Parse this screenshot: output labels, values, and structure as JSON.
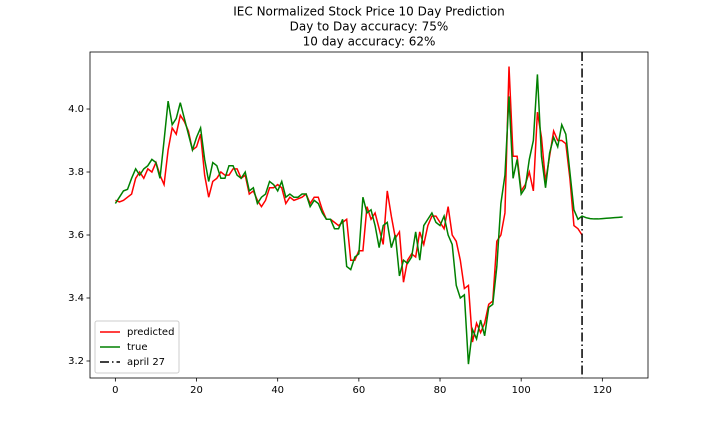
{
  "chart_data": {
    "type": "line",
    "title": "IEC Normalized Stock Price 10 Day Prediction",
    "subtitle": [
      "Day to Day accuracy: 75%",
      "10 day accuracy: 62%"
    ],
    "x": [
      0,
      1,
      2,
      3,
      4,
      5,
      6,
      7,
      8,
      9,
      10,
      11,
      12,
      13,
      14,
      15,
      16,
      17,
      18,
      19,
      20,
      21,
      22,
      23,
      24,
      25,
      26,
      27,
      28,
      29,
      30,
      31,
      32,
      33,
      34,
      35,
      36,
      37,
      38,
      39,
      40,
      41,
      42,
      43,
      44,
      45,
      46,
      47,
      48,
      49,
      50,
      51,
      52,
      53,
      54,
      55,
      56,
      57,
      58,
      59,
      60,
      61,
      62,
      63,
      64,
      65,
      66,
      67,
      68,
      69,
      70,
      71,
      72,
      73,
      74,
      75,
      76,
      77,
      78,
      79,
      80,
      81,
      82,
      83,
      84,
      85,
      86,
      87,
      88,
      89,
      90,
      91,
      92,
      93,
      94,
      95,
      96,
      97,
      98,
      99,
      100,
      101,
      102,
      103,
      104,
      105,
      106,
      107,
      108,
      109,
      110,
      111,
      112,
      113,
      114,
      115,
      116,
      117,
      118,
      119,
      120,
      121,
      122,
      123,
      124,
      125
    ],
    "series": [
      {
        "name": "predicted",
        "color": "#ff0000",
        "values": [
          3.71,
          3.705,
          3.71,
          3.72,
          3.73,
          3.78,
          3.8,
          3.78,
          3.81,
          3.8,
          3.83,
          3.79,
          3.76,
          3.87,
          3.94,
          3.92,
          3.98,
          3.96,
          3.93,
          3.87,
          3.88,
          3.92,
          3.79,
          3.72,
          3.77,
          3.78,
          3.8,
          3.79,
          3.79,
          3.81,
          3.81,
          3.78,
          3.79,
          3.73,
          3.74,
          3.71,
          3.69,
          3.71,
          3.75,
          3.75,
          3.76,
          3.75,
          3.7,
          3.72,
          3.71,
          3.715,
          3.72,
          3.73,
          3.7,
          3.72,
          3.72,
          3.68,
          3.65,
          3.65,
          3.64,
          3.63,
          3.64,
          3.65,
          3.52,
          3.52,
          3.55,
          3.55,
          3.69,
          3.65,
          3.67,
          3.62,
          3.57,
          3.74,
          3.66,
          3.59,
          3.61,
          3.45,
          3.52,
          3.54,
          3.53,
          3.61,
          3.57,
          3.63,
          3.66,
          3.66,
          3.64,
          3.62,
          3.69,
          3.6,
          3.58,
          3.52,
          3.43,
          3.44,
          3.26,
          3.32,
          3.29,
          3.32,
          3.38,
          3.39,
          3.58,
          3.6,
          3.67,
          4.135,
          3.85,
          3.85,
          3.74,
          3.76,
          3.8,
          3.74,
          3.99,
          3.91,
          3.77,
          3.85,
          3.93,
          3.9,
          3.9,
          3.89,
          3.78,
          3.63,
          3.62,
          3.6,
          null,
          null,
          null,
          null,
          null,
          null,
          null,
          null,
          null,
          null
        ]
      },
      {
        "name": "true",
        "color": "#008000",
        "values": [
          3.7,
          3.72,
          3.74,
          3.745,
          3.78,
          3.81,
          3.79,
          3.81,
          3.82,
          3.84,
          3.83,
          3.78,
          3.9,
          4.025,
          3.95,
          3.97,
          4.02,
          3.97,
          3.92,
          3.87,
          3.91,
          3.94,
          3.84,
          3.77,
          3.83,
          3.82,
          3.78,
          3.78,
          3.82,
          3.82,
          3.79,
          3.78,
          3.8,
          3.74,
          3.75,
          3.7,
          3.72,
          3.73,
          3.77,
          3.76,
          3.74,
          3.77,
          3.72,
          3.73,
          3.72,
          3.72,
          3.73,
          3.73,
          3.69,
          3.71,
          3.7,
          3.67,
          3.65,
          3.65,
          3.62,
          3.62,
          3.65,
          3.5,
          3.49,
          3.53,
          3.54,
          3.72,
          3.67,
          3.68,
          3.63,
          3.56,
          3.63,
          3.64,
          3.56,
          3.6,
          3.47,
          3.52,
          3.51,
          3.53,
          3.61,
          3.52,
          3.63,
          3.65,
          3.67,
          3.64,
          3.63,
          3.66,
          3.6,
          3.57,
          3.44,
          3.4,
          3.41,
          3.19,
          3.3,
          3.27,
          3.33,
          3.28,
          3.37,
          3.38,
          3.5,
          3.7,
          3.79,
          4.04,
          3.78,
          3.84,
          3.73,
          3.75,
          3.84,
          3.9,
          4.11,
          3.85,
          3.75,
          3.86,
          3.91,
          3.88,
          3.95,
          3.92,
          3.8,
          3.68,
          3.65,
          3.66,
          3.655,
          3.652,
          3.651,
          3.651,
          3.652,
          3.653,
          3.654,
          3.655,
          3.656,
          3.657
        ]
      }
    ],
    "vlines": [
      {
        "name": "april 27",
        "x": 115,
        "color": "#000000"
      }
    ],
    "xlim": [
      -6.25,
      131.25
    ],
    "xticks": [
      0,
      20,
      40,
      60,
      80,
      100,
      120
    ],
    "ylim": [
      3.146,
      4.181
    ],
    "yticks": [
      3.2,
      3.4,
      3.6,
      3.8,
      {
        "value": 4,
        "label": "4.0"
      }
    ],
    "legend": "lower left"
  }
}
